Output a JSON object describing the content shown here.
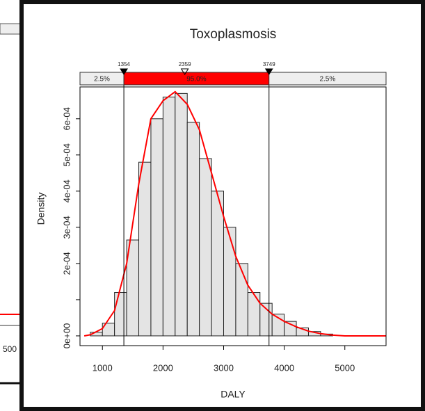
{
  "behind_window": {
    "tick_label": "500"
  },
  "chart_data": {
    "type": "histogram",
    "title": "Toxoplasmosis",
    "xlabel": "DALY",
    "ylabel": "Density",
    "bins": [
      800,
      1000,
      1200,
      1400,
      1600,
      1800,
      2000,
      2200,
      2400,
      2600,
      2800,
      3000,
      3200,
      3400,
      3600,
      3800,
      4000,
      4200,
      4400,
      4600,
      4800
    ],
    "values": [
      1e-05,
      3.5e-05,
      0.00012,
      0.000265,
      0.00048,
      0.0006,
      0.00066,
      0.00067,
      0.00059,
      0.00049,
      0.0004,
      0.0003,
      0.0002,
      0.00012,
      9e-05,
      6e-05,
      4e-05,
      2.2e-05,
      1.2e-05,
      5e-06
    ],
    "color": "#e4e4e4",
    "density": {
      "color": "#ff0000",
      "x": [
        700,
        800,
        1000,
        1200,
        1400,
        1600,
        1800,
        2000,
        2200,
        2400,
        2600,
        2800,
        3000,
        3200,
        3400,
        3600,
        3800,
        4000,
        4200,
        4400,
        4600,
        4800,
        5000,
        5680
      ],
      "y": [
        0,
        3e-06,
        2e-05,
        7e-05,
        0.0002,
        0.00042,
        0.0006,
        0.00065,
        0.000675,
        0.00064,
        0.00057,
        0.00045,
        0.00033,
        0.00022,
        0.00014,
        9e-05,
        6e-05,
        4e-05,
        2.5e-05,
        1.3e-05,
        6e-06,
        2e-06,
        0,
        0
      ]
    },
    "xlim": [
      630,
      5680
    ],
    "ylim": [
      -2.7e-05,
      0.000688
    ],
    "xticks": [
      1000,
      2000,
      3000,
      4000,
      5000
    ],
    "yticks": [
      {
        "value": 0,
        "label": "0e+00"
      },
      {
        "value": 0.0001,
        "label": null
      },
      {
        "value": 0.0002,
        "label": "2e-04"
      },
      {
        "value": 0.0003,
        "label": "3e-04"
      },
      {
        "value": 0.0004,
        "label": "4e-04"
      },
      {
        "value": 0.0005,
        "label": "5e-04"
      },
      {
        "value": 0.0006,
        "label": "6e-04"
      }
    ],
    "interval": {
      "lower": 1354,
      "median": 2359,
      "upper": 3749,
      "lower_tail_label": "2.5%",
      "central_label": "95.0%",
      "upper_tail_label": "2.5%",
      "central_color": "#ff0000",
      "tail_color": "#eeeeee"
    }
  }
}
